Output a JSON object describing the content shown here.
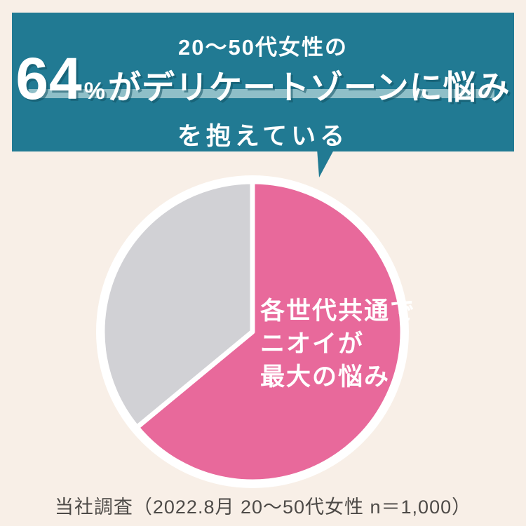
{
  "page": {
    "background_color": "#f8efe7"
  },
  "header": {
    "bg_color": "#217a93",
    "text_color": "#ffffff",
    "highlight_bar_color": "#8fbfc8",
    "shadow_color": "rgba(18,82,100,0.55)",
    "line1": "20〜50代女性の",
    "line2": {
      "number": "64",
      "unit": "%",
      "rest": "がデリケートゾーンに悩み"
    },
    "line3": "を抱えている"
  },
  "chart_data": {
    "type": "pie",
    "title": "20〜50代女性の64%がデリケートゾーンに悩みを抱えている",
    "values": [
      64,
      36
    ],
    "colors": [
      "#e8699b",
      "#d1d1d5"
    ],
    "start_angle_deg": 0,
    "direction": "clockwise",
    "legend_position": "none",
    "annotation_lines": [
      "各世代共通で",
      "ニオイが",
      "最大の悩み"
    ],
    "annotation_color": "#ffffff",
    "divider_color": "#ffffff",
    "outer_ring_color": "#ffffff"
  },
  "footer": {
    "source_note": "当社調査（2022.8月 20〜50代女性 n＝1,000）",
    "text_color": "#4d4a47"
  }
}
